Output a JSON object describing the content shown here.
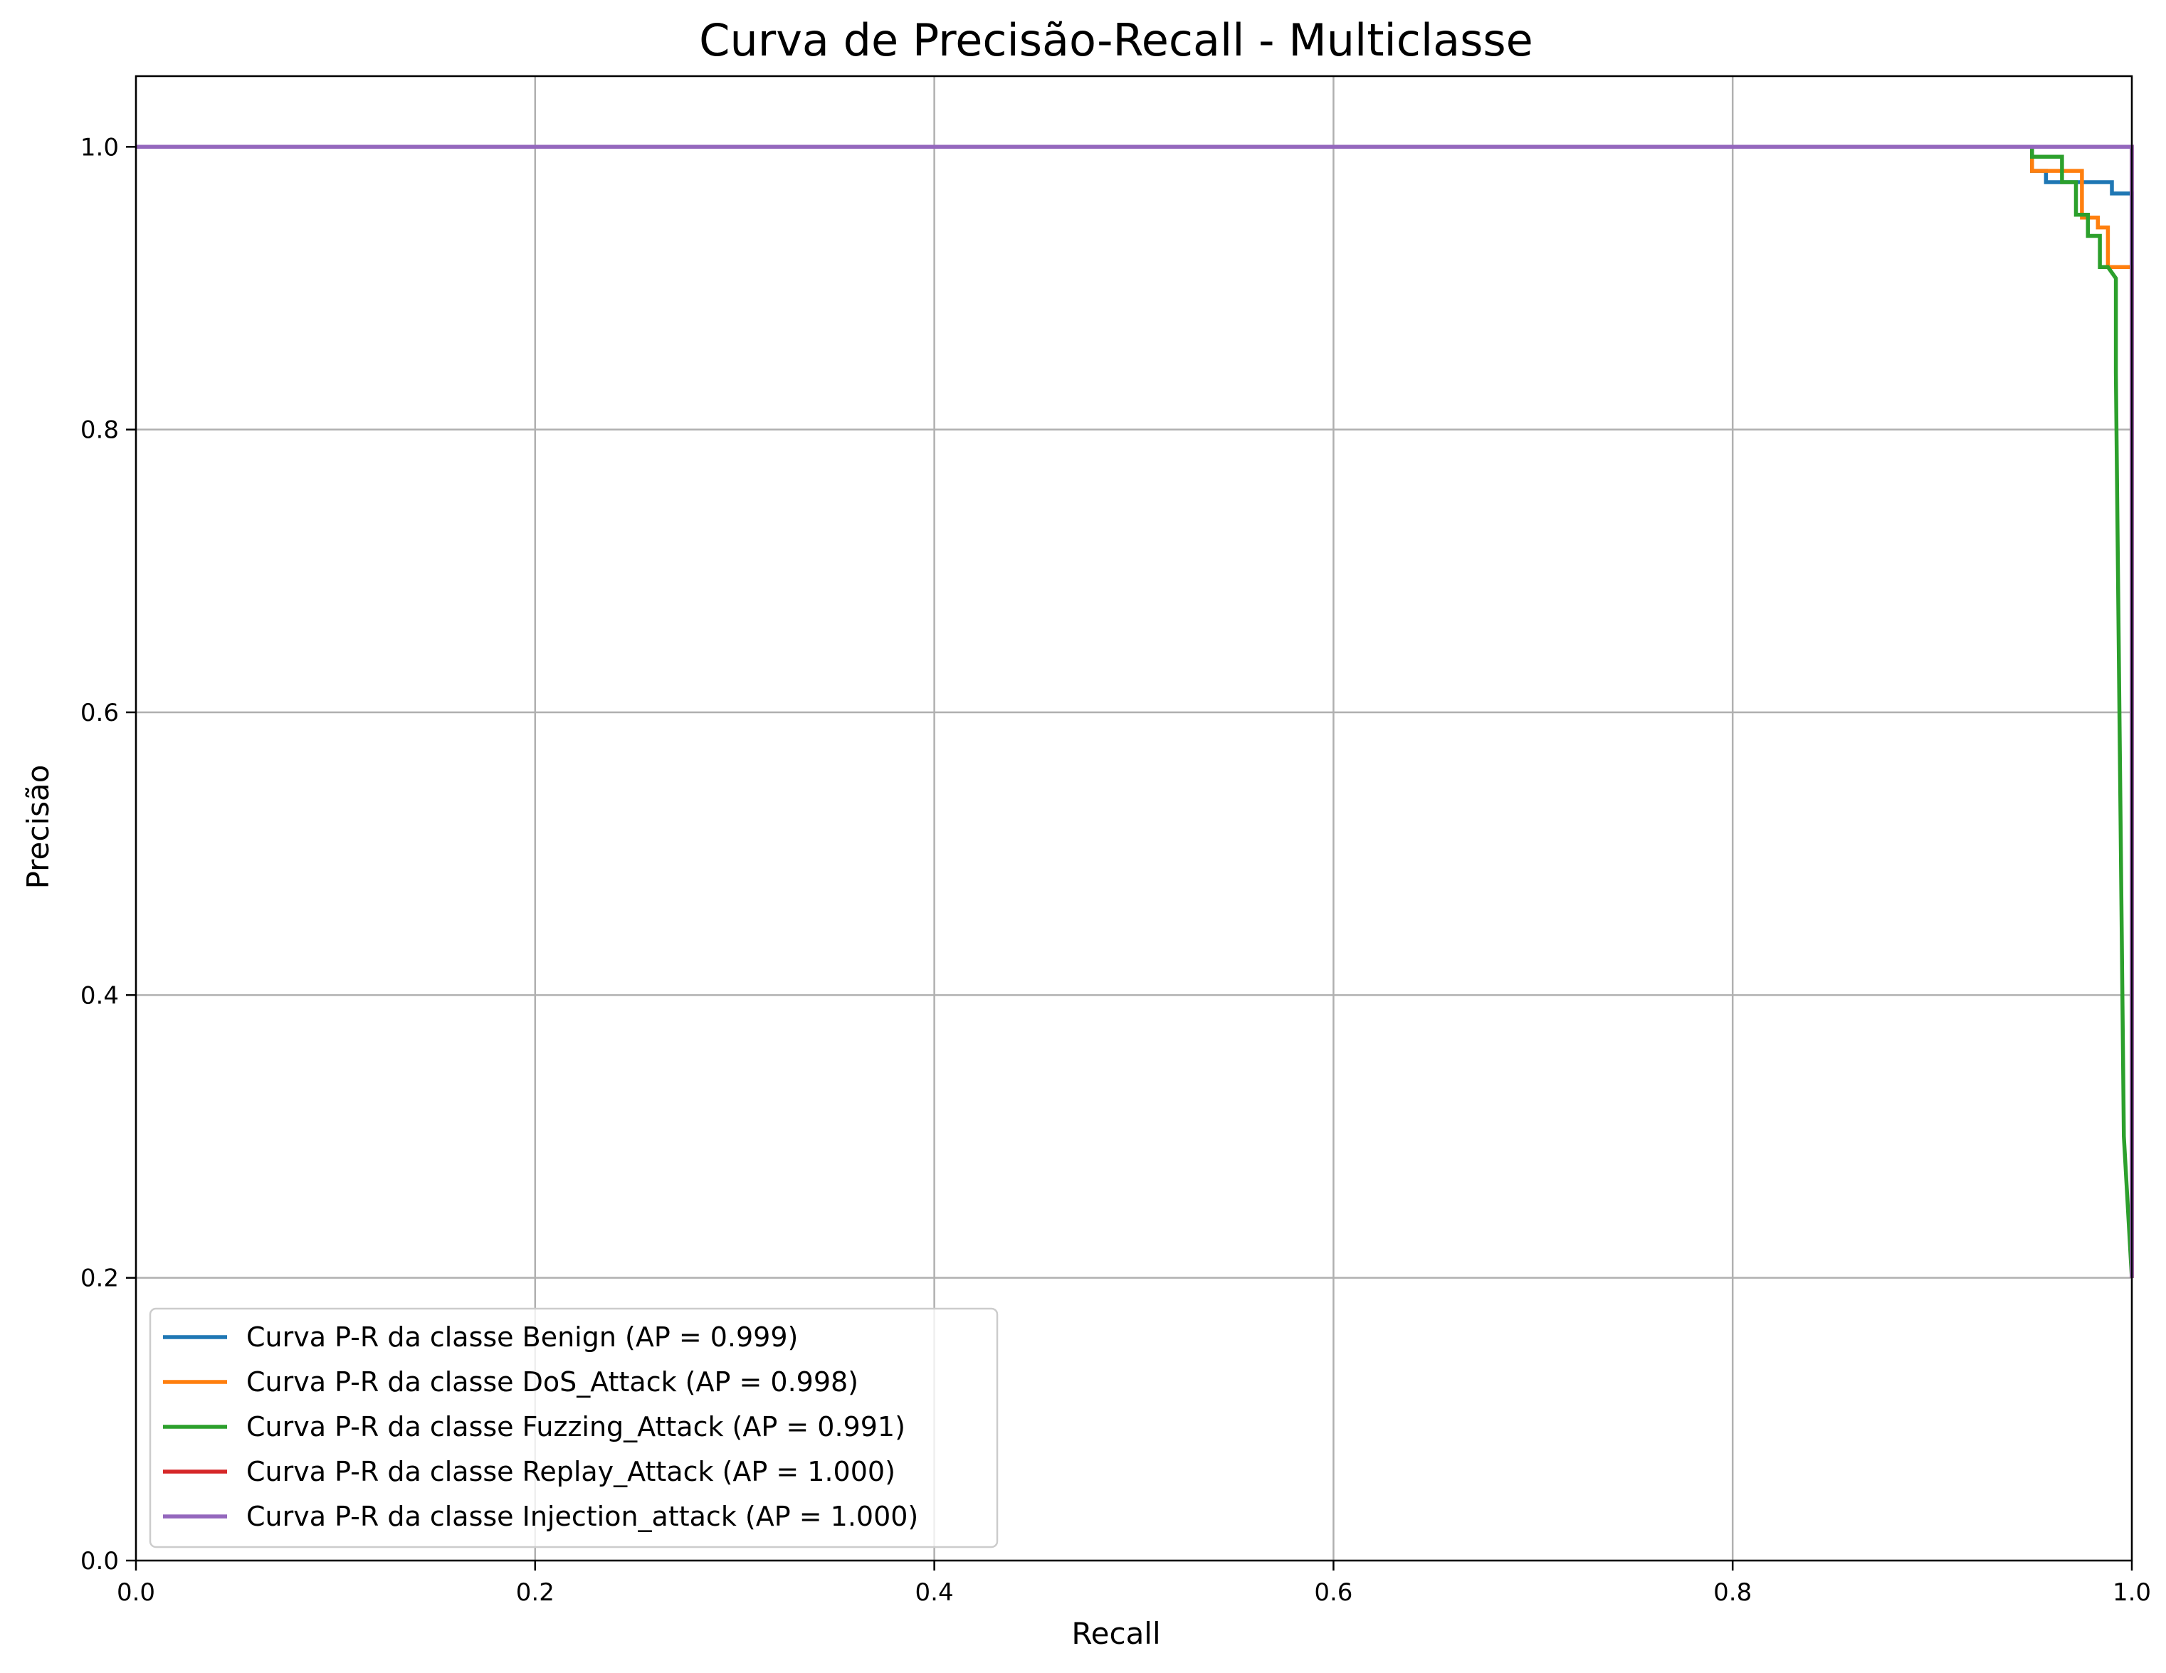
{
  "chart_data": {
    "type": "line",
    "title": "Curva de Precisão-Recall - Multiclasse",
    "xlabel": "Recall",
    "ylabel": "Precisão",
    "xlim": [
      0.0,
      1.0
    ],
    "ylim": [
      0.0,
      1.05
    ],
    "xticks": [
      "0.0",
      "0.2",
      "0.4",
      "0.6",
      "0.8",
      "1.0"
    ],
    "yticks": [
      "0.0",
      "0.2",
      "0.4",
      "0.6",
      "0.8",
      "1.0"
    ],
    "grid": true,
    "legend_position": "lower-left",
    "series": [
      {
        "name": "Curva P-R da classe Benign (AP = 0.999)",
        "color": "#1f77b4",
        "x": [
          0.0,
          0.95,
          0.95,
          0.957,
          0.957,
          0.99,
          0.99,
          1.0,
          1.0
        ],
        "y": [
          1.0,
          1.0,
          0.983,
          0.983,
          0.975,
          0.975,
          0.967,
          0.967,
          0.2
        ]
      },
      {
        "name": "Curva P-R da classe DoS_Attack (AP = 0.998)",
        "color": "#ff7f0e",
        "x": [
          0.0,
          0.95,
          0.95,
          0.975,
          0.975,
          0.983,
          0.983,
          0.988,
          0.988,
          1.0,
          1.0
        ],
        "y": [
          1.0,
          1.0,
          0.983,
          0.983,
          0.95,
          0.95,
          0.943,
          0.943,
          0.915,
          0.915,
          0.2
        ]
      },
      {
        "name": "Curva P-R da classe Fuzzing_Attack (AP = 0.991)",
        "color": "#2ca02c",
        "x": [
          0.0,
          0.95,
          0.95,
          0.965,
          0.965,
          0.972,
          0.972,
          0.978,
          0.978,
          0.984,
          0.984,
          0.988,
          0.992,
          0.992,
          0.996,
          1.0
        ],
        "y": [
          1.0,
          1.0,
          0.993,
          0.993,
          0.975,
          0.975,
          0.952,
          0.952,
          0.937,
          0.937,
          0.915,
          0.915,
          0.907,
          0.84,
          0.3,
          0.2
        ]
      },
      {
        "name": "Curva P-R da classe Replay_Attack (AP = 1.000)",
        "color": "#d62728",
        "x": [
          0.0,
          1.0,
          1.0
        ],
        "y": [
          1.0,
          1.0,
          0.2
        ]
      },
      {
        "name": "Curva P-R da classe Injection_attack (AP = 1.000)",
        "color": "#9467bd",
        "x": [
          0.0,
          1.0,
          1.0
        ],
        "y": [
          1.0,
          1.0,
          0.2
        ]
      }
    ]
  }
}
